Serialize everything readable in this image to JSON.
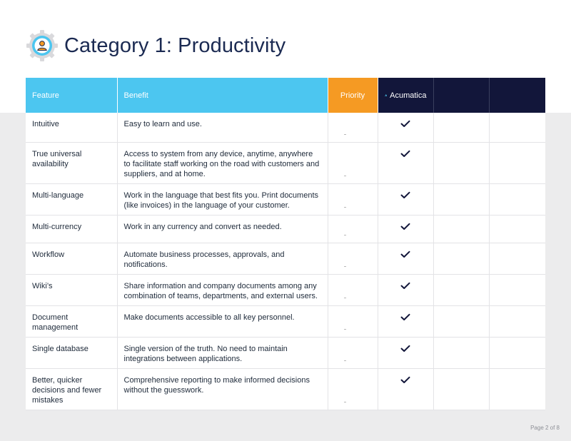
{
  "page": {
    "title": "Category 1: Productivity",
    "page_number": "Page 2 of 8",
    "icon": "gear-user-icon"
  },
  "colors": {
    "title": "#1b2a52",
    "header_blue": "#4cc6f0",
    "header_orange": "#f59a23",
    "header_navy": "#12163a",
    "background_band": "#ececed"
  },
  "table": {
    "headers": {
      "feature": "Feature",
      "benefit": "Benefit",
      "priority": "Priority",
      "vendor_1": "Acumatica",
      "vendor_2": "",
      "vendor_3": ""
    },
    "rows": [
      {
        "feature": "Intuitive",
        "benefit": "Easy to learn and use.",
        "acumatica": true
      },
      {
        "feature": "True universal availability",
        "benefit": "Access to system from any device, anytime, anywhere to facilitate staff working on the road with customers and suppliers, and at home.",
        "acumatica": true
      },
      {
        "feature": "Multi-language",
        "benefit": "Work in the language that best fits you. Print documents (like invoices) in the language of your customer.",
        "acumatica": true
      },
      {
        "feature": "Multi-currency",
        "benefit": "Work in any currency and convert as needed.",
        "acumatica": true
      },
      {
        "feature": "Workflow",
        "benefit": "Automate business processes, approvals, and notifications.",
        "acumatica": true
      },
      {
        "feature": "Wiki’s",
        "benefit": "Share information and company documents among any combination of teams, departments, and external users.",
        "acumatica": true
      },
      {
        "feature": "Document management",
        "benefit": "Make documents accessible to all key personnel.",
        "acumatica": true
      },
      {
        "feature": "Single database",
        "benefit": "Single version of the truth. No need to maintain integrations between applications.",
        "acumatica": true
      },
      {
        "feature": "Better, quicker decisions and fewer mistakes",
        "benefit": "Comprehensive reporting to make informed decisions without the guesswork.",
        "acumatica": true
      }
    ]
  }
}
